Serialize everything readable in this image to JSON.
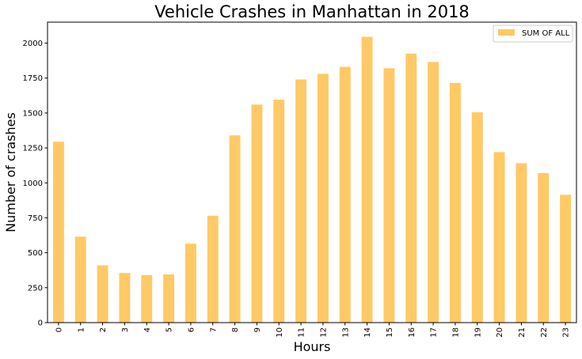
{
  "chart_data": {
    "type": "bar",
    "title": "Vehicle Crashes in Manhattan in 2018",
    "xlabel": "Hours",
    "ylabel": "Number of crashes",
    "categories": [
      "0",
      "1",
      "2",
      "3",
      "4",
      "5",
      "6",
      "7",
      "8",
      "9",
      "10",
      "11",
      "12",
      "13",
      "14",
      "15",
      "16",
      "17",
      "18",
      "19",
      "20",
      "21",
      "22",
      "23"
    ],
    "series": [
      {
        "name": "SUM OF ALL",
        "values": [
          1295,
          615,
          410,
          355,
          340,
          345,
          565,
          765,
          1340,
          1560,
          1595,
          1740,
          1780,
          1830,
          2045,
          1820,
          1925,
          1865,
          1715,
          1505,
          1220,
          1140,
          1070,
          915
        ],
        "color": "#ffc966"
      }
    ],
    "ylim": [
      0,
      2150
    ],
    "yticks": [
      0,
      250,
      500,
      750,
      1000,
      1250,
      1500,
      1750,
      2000
    ],
    "grid": false,
    "legend_position": "top-right"
  }
}
